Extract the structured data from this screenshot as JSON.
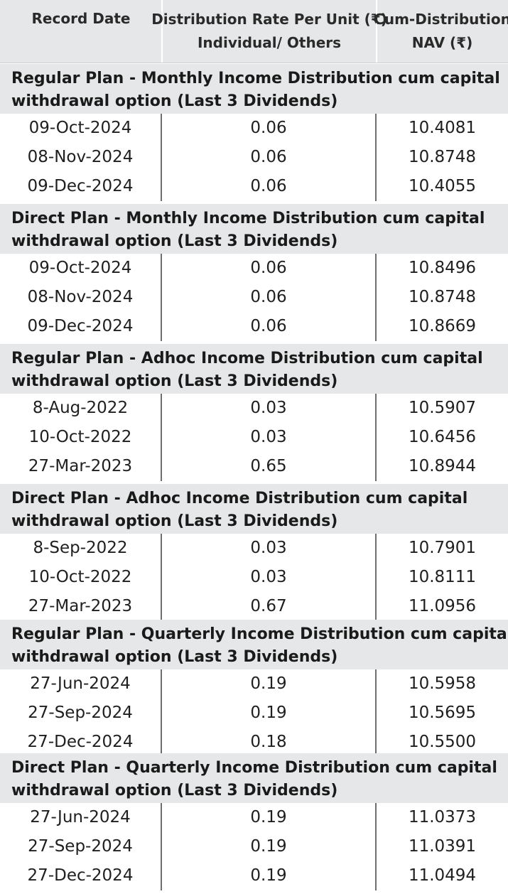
{
  "header": {
    "col1": "Record Date",
    "col2_line1": "Distribution Rate Per Unit  (₹)",
    "col2_line2": "Individual/ Others",
    "col3_line1": "Cum-Distribution",
    "col3_line2": "NAV (₹)"
  },
  "sections": [
    {
      "title_line1": "Regular Plan - Monthly Income Distribution cum capital",
      "title_line2": "withdrawal option (Last 3 Dividends)",
      "rows": [
        {
          "date": "09-Oct-2024",
          "rate": "0.06",
          "nav": "10.4081"
        },
        {
          "date": "08-Nov-2024",
          "rate": "0.06",
          "nav": "10.8748"
        },
        {
          "date": "09-Dec-2024",
          "rate": "0.06",
          "nav": "10.4055"
        }
      ]
    },
    {
      "title_line1": "Direct Plan - Monthly Income Distribution cum capital",
      "title_line2": "withdrawal option (Last 3 Dividends)",
      "rows": [
        {
          "date": "09-Oct-2024",
          "rate": "0.06",
          "nav": "10.8496"
        },
        {
          "date": "08-Nov-2024",
          "rate": "0.06",
          "nav": "10.8748"
        },
        {
          "date": "09-Dec-2024",
          "rate": "0.06",
          "nav": "10.8669"
        }
      ]
    },
    {
      "title_line1": "Regular Plan - Adhoc Income Distribution cum capital",
      "title_line2": "withdrawal option (Last 3 Dividends)",
      "rows": [
        {
          "date": "8-Aug-2022",
          "rate": "0.03",
          "nav": "10.5907"
        },
        {
          "date": "10-Oct-2022",
          "rate": "0.03",
          "nav": "10.6456"
        },
        {
          "date": "27-Mar-2023",
          "rate": "0.65",
          "nav": "10.8944"
        }
      ]
    },
    {
      "title_line1": "Direct Plan - Adhoc Income Distribution cum capital",
      "title_line2": "withdrawal option (Last 3 Dividends)",
      "rows": [
        {
          "date": "8-Sep-2022",
          "rate": "0.03",
          "nav": "10.7901"
        },
        {
          "date": "10-Oct-2022",
          "rate": "0.03",
          "nav": "10.8111"
        },
        {
          "date": "27-Mar-2023",
          "rate": "0.67",
          "nav": "11.0956"
        }
      ]
    },
    {
      "title_line1": "Regular Plan - Quarterly Income Distribution cum capital",
      "title_line2": "withdrawal option (Last 3 Dividends)",
      "rows": [
        {
          "date": "27-Jun-2024",
          "rate": "0.19",
          "nav": "10.5958"
        },
        {
          "date": "27-Sep-2024",
          "rate": "0.19",
          "nav": "10.5695"
        },
        {
          "date": "27-Dec-2024",
          "rate": "0.18",
          "nav": "10.5500"
        }
      ]
    },
    {
      "title_line1": "Direct Plan - Quarterly Income Distribution cum capital",
      "title_line2": "withdrawal option (Last 3 Dividends)",
      "rows": [
        {
          "date": "27-Jun-2024",
          "rate": "0.19",
          "nav": "11.0373"
        },
        {
          "date": "27-Sep-2024",
          "rate": "0.19",
          "nav": "11.0391"
        },
        {
          "date": "27-Dec-2024",
          "rate": "0.19",
          "nav": "11.0494"
        }
      ]
    }
  ]
}
